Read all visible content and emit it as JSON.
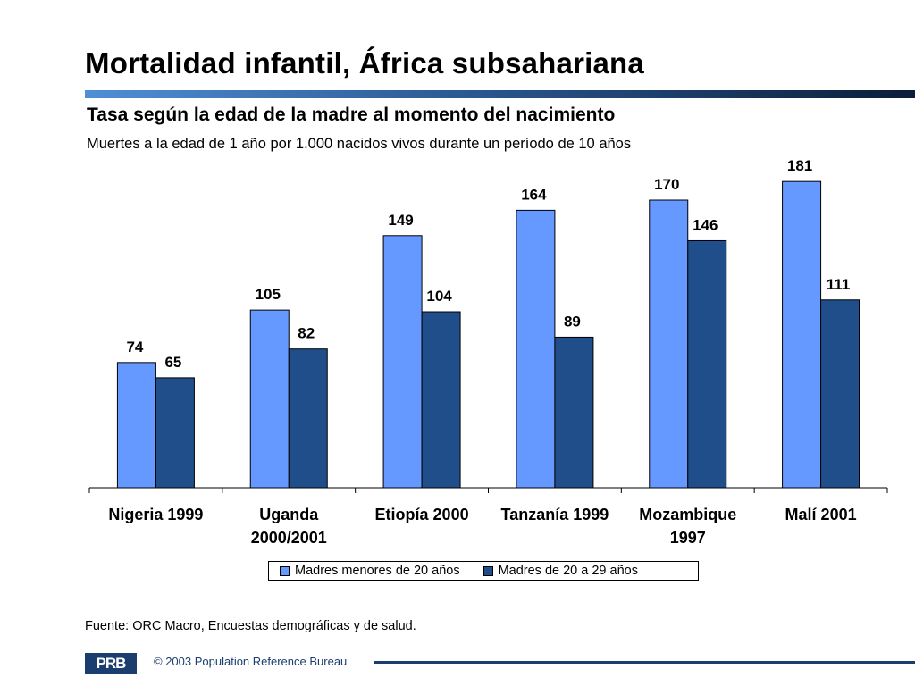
{
  "title": "Mortalidad infantil, África subsahariana",
  "subtitle": "Tasa según la edad de la madre al momento del nacimiento",
  "description": "Muertes a la edad de 1 año por 1.000 nacidos vivos durante un período de 10 años",
  "source": "Fuente: ORC Macro, Encuestas demográficas y de salud.",
  "footer": {
    "logo_text": "PRB",
    "copyright": "© 2003 Population Reference Bureau"
  },
  "colors": {
    "series_1": "#6699ff",
    "series_2": "#1f4e8a",
    "title_rule": "#2c5a93",
    "footer": "#1b3e6f"
  },
  "chart_data": {
    "type": "bar",
    "categories": [
      [
        "Nigeria 1999"
      ],
      [
        "Uganda",
        "2000/2001"
      ],
      [
        "Etiopía 2000"
      ],
      [
        "Tanzanía 1999"
      ],
      [
        "Mozambique",
        "1997"
      ],
      [
        "Malí 2001"
      ]
    ],
    "series": [
      {
        "name": "Madres menores de 20 años",
        "values": [
          74,
          105,
          149,
          164,
          170,
          181
        ]
      },
      {
        "name": "Madres de 20 a 29 años",
        "values": [
          65,
          82,
          104,
          89,
          146,
          111
        ]
      }
    ],
    "ylim": [
      0,
      200
    ],
    "grid": false,
    "legend_position": "bottom"
  }
}
